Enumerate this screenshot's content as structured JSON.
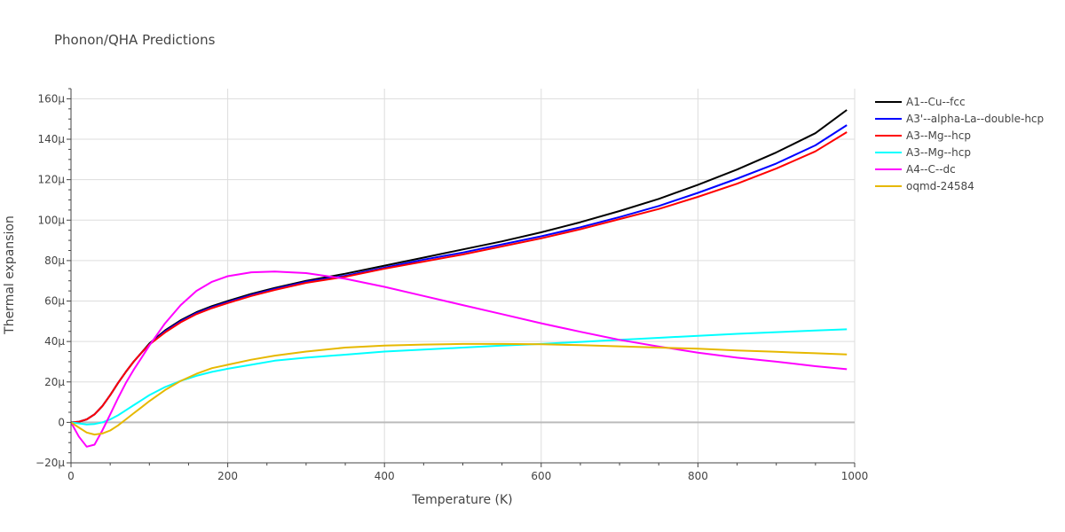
{
  "chart_data": {
    "type": "line",
    "title": "Phonon/QHA Predictions",
    "xlabel": "Temperature (K)",
    "ylabel": "Thermal expansion",
    "xlim": [
      0,
      1000
    ],
    "ylim": [
      -20,
      165
    ],
    "y_unit_suffix": "μ",
    "xticks": [
      0,
      200,
      400,
      600,
      800,
      1000
    ],
    "xtick_labels": [
      "0",
      "200",
      "400",
      "600",
      "800",
      "1000"
    ],
    "yticks": [
      -20,
      0,
      20,
      40,
      60,
      80,
      100,
      120,
      140,
      160
    ],
    "ytick_labels": [
      "−20μ",
      "0",
      "20μ",
      "40μ",
      "60μ",
      "80μ",
      "100μ",
      "120μ",
      "140μ",
      "160μ"
    ],
    "grid": true,
    "legend_position": "right",
    "series": [
      {
        "name": "A1--Cu--fcc",
        "color": "#000000",
        "x": [
          0,
          10,
          20,
          30,
          40,
          50,
          60,
          70,
          80,
          90,
          100,
          120,
          140,
          160,
          180,
          200,
          230,
          260,
          300,
          350,
          400,
          450,
          500,
          550,
          600,
          650,
          700,
          750,
          800,
          850,
          900,
          950,
          990
        ],
        "y": [
          0,
          0.3,
          1.5,
          4,
          8,
          13.5,
          19.5,
          25,
          30,
          34.5,
          39,
          45.5,
          50.5,
          54.5,
          57.5,
          60,
          63.5,
          66.5,
          70,
          73.5,
          77.5,
          81.5,
          85.5,
          89.5,
          94,
          99,
          104.5,
          110.5,
          117.5,
          125,
          133.5,
          143,
          154.5
        ]
      },
      {
        "name": "A3'--alpha-La--double-hcp",
        "color": "#0000ff",
        "x": [
          0,
          10,
          20,
          30,
          40,
          50,
          60,
          70,
          80,
          90,
          100,
          120,
          140,
          160,
          180,
          200,
          230,
          260,
          300,
          350,
          400,
          450,
          500,
          550,
          600,
          650,
          700,
          750,
          800,
          850,
          900,
          950,
          990
        ],
        "y": [
          0,
          0.3,
          1.5,
          4,
          8,
          13.5,
          19.5,
          25,
          30,
          34.5,
          38.5,
          45,
          50,
          54,
          57,
          59.5,
          63,
          66,
          69.5,
          72.5,
          76.5,
          80.5,
          84,
          88,
          92,
          96.5,
          101.5,
          107,
          113.5,
          120.5,
          128,
          137,
          147
        ]
      },
      {
        "name": "A3--Mg--hcp",
        "color": "#ff0000",
        "x": [
          0,
          10,
          20,
          30,
          40,
          50,
          60,
          70,
          80,
          90,
          100,
          120,
          140,
          160,
          180,
          200,
          230,
          260,
          300,
          350,
          400,
          450,
          500,
          550,
          600,
          650,
          700,
          750,
          800,
          850,
          900,
          950,
          990
        ],
        "y": [
          0,
          0.3,
          1.5,
          4,
          8,
          13.5,
          19.5,
          25,
          30,
          34.5,
          38.5,
          44.5,
          49.5,
          53.5,
          56.5,
          59,
          62.5,
          65.5,
          69,
          72,
          76,
          79.5,
          83,
          87,
          91,
          95.5,
          100.5,
          105.5,
          111.5,
          118,
          125.5,
          134,
          143.5
        ]
      },
      {
        "name": "A3--Mg--hcp",
        "color": "#00ffff",
        "x": [
          0,
          10,
          20,
          30,
          40,
          50,
          60,
          70,
          80,
          90,
          100,
          120,
          140,
          160,
          180,
          200,
          230,
          260,
          300,
          350,
          400,
          450,
          500,
          550,
          600,
          650,
          700,
          750,
          800,
          850,
          900,
          950,
          990
        ],
        "y": [
          0,
          -0.5,
          -1,
          -0.8,
          0,
          1.5,
          3.5,
          6,
          8.5,
          11,
          13.5,
          17.5,
          20.5,
          23,
          25,
          26.5,
          28.5,
          30.5,
          32,
          33.5,
          35,
          36,
          37,
          38,
          38.8,
          39.8,
          40.8,
          41.8,
          42.8,
          43.8,
          44.6,
          45.4,
          46
        ]
      },
      {
        "name": "A4--C--dc",
        "color": "#ff00ff",
        "x": [
          0,
          10,
          20,
          30,
          40,
          50,
          60,
          70,
          80,
          90,
          100,
          120,
          140,
          160,
          180,
          200,
          230,
          260,
          300,
          350,
          400,
          450,
          500,
          550,
          600,
          650,
          700,
          750,
          800,
          850,
          900,
          950,
          990
        ],
        "y": [
          0,
          -7,
          -12,
          -11,
          -4,
          4,
          12,
          19.5,
          26,
          32,
          38,
          49,
          58,
          65,
          69.5,
          72.3,
          74.2,
          74.6,
          73.8,
          71,
          67,
          62.5,
          58,
          53.5,
          49,
          44.8,
          40.8,
          37.5,
          34.5,
          32,
          30,
          27.8,
          26.3
        ]
      },
      {
        "name": "oqmd-24584",
        "color": "#e6b800",
        "x": [
          0,
          10,
          20,
          30,
          40,
          50,
          60,
          70,
          80,
          90,
          100,
          120,
          140,
          160,
          180,
          200,
          230,
          260,
          300,
          350,
          400,
          450,
          500,
          550,
          600,
          650,
          700,
          750,
          800,
          850,
          900,
          950,
          990
        ],
        "y": [
          0,
          -2.5,
          -5,
          -6,
          -5.5,
          -4,
          -1.5,
          1.5,
          4.5,
          7.5,
          10.5,
          16,
          20.5,
          24,
          26.8,
          28.5,
          31,
          33,
          35,
          37,
          38,
          38.5,
          38.8,
          38.8,
          38.6,
          38.2,
          37.6,
          37,
          36.4,
          35.6,
          34.9,
          34.2,
          33.6
        ]
      }
    ]
  }
}
